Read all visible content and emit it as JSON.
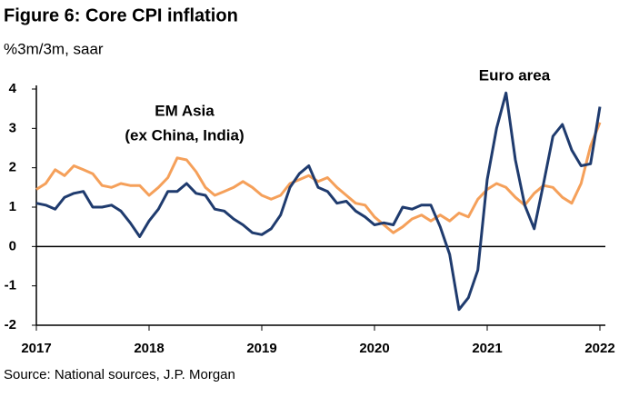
{
  "chart_data": {
    "type": "line",
    "title": "Figure 6: Core CPI inflation",
    "subtitle": "%3m/3m, saar",
    "source": "Source: National sources, J.P. Morgan",
    "annotations": [
      "EM Asia",
      "(ex China, India)",
      "Euro area"
    ],
    "x": [
      2017.0,
      2017.083,
      2017.167,
      2017.25,
      2017.333,
      2017.417,
      2017.5,
      2017.583,
      2017.667,
      2017.75,
      2017.833,
      2017.917,
      2018.0,
      2018.083,
      2018.167,
      2018.25,
      2018.333,
      2018.417,
      2018.5,
      2018.583,
      2018.667,
      2018.75,
      2018.833,
      2018.917,
      2019.0,
      2019.083,
      2019.167,
      2019.25,
      2019.333,
      2019.417,
      2019.5,
      2019.583,
      2019.667,
      2019.75,
      2019.833,
      2019.917,
      2020.0,
      2020.083,
      2020.167,
      2020.25,
      2020.333,
      2020.417,
      2020.5,
      2020.583,
      2020.667,
      2020.75,
      2020.833,
      2020.917,
      2021.0,
      2021.083,
      2021.167,
      2021.25,
      2021.333,
      2021.417,
      2021.5,
      2021.583,
      2021.667,
      2021.75,
      2021.833,
      2021.917,
      2022.0
    ],
    "series": [
      {
        "name": "Euro area",
        "color": "#1f3b6e",
        "values": [
          1.1,
          1.05,
          0.95,
          1.25,
          1.35,
          1.4,
          1.0,
          1.0,
          1.05,
          0.9,
          0.6,
          0.25,
          0.65,
          0.95,
          1.4,
          1.4,
          1.6,
          1.35,
          1.3,
          0.95,
          0.9,
          0.7,
          0.55,
          0.35,
          0.3,
          0.45,
          0.8,
          1.5,
          1.85,
          2.05,
          1.5,
          1.4,
          1.1,
          1.15,
          0.9,
          0.75,
          0.55,
          0.6,
          0.55,
          1.0,
          0.95,
          1.05,
          1.05,
          0.5,
          -0.2,
          -1.6,
          -1.3,
          -0.6,
          1.7,
          3.0,
          3.9,
          2.2,
          1.05,
          0.45,
          1.6,
          2.8,
          3.1,
          2.45,
          2.05,
          2.1,
          3.55
        ]
      },
      {
        "name": "EM Asia",
        "color": "#f5a05a",
        "values": [
          1.45,
          1.6,
          1.95,
          1.8,
          2.05,
          1.95,
          1.85,
          1.55,
          1.5,
          1.6,
          1.55,
          1.55,
          1.3,
          1.5,
          1.75,
          2.25,
          2.2,
          1.9,
          1.5,
          1.3,
          1.4,
          1.5,
          1.65,
          1.5,
          1.3,
          1.2,
          1.3,
          1.6,
          1.7,
          1.8,
          1.65,
          1.75,
          1.5,
          1.3,
          1.1,
          1.05,
          0.75,
          0.55,
          0.35,
          0.5,
          0.7,
          0.8,
          0.65,
          0.8,
          0.65,
          0.85,
          0.75,
          1.2,
          1.45,
          1.6,
          1.5,
          1.25,
          1.05,
          1.35,
          1.55,
          1.5,
          1.25,
          1.1,
          1.6,
          2.55,
          3.15
        ]
      }
    ],
    "xlim": [
      2017,
      2022
    ],
    "xticks": [
      2017,
      2018,
      2019,
      2020,
      2021,
      2022
    ],
    "ylim": [
      -2,
      4
    ],
    "yticks": [
      -2,
      -1,
      0,
      1,
      2,
      3,
      4
    ],
    "grid": false
  }
}
